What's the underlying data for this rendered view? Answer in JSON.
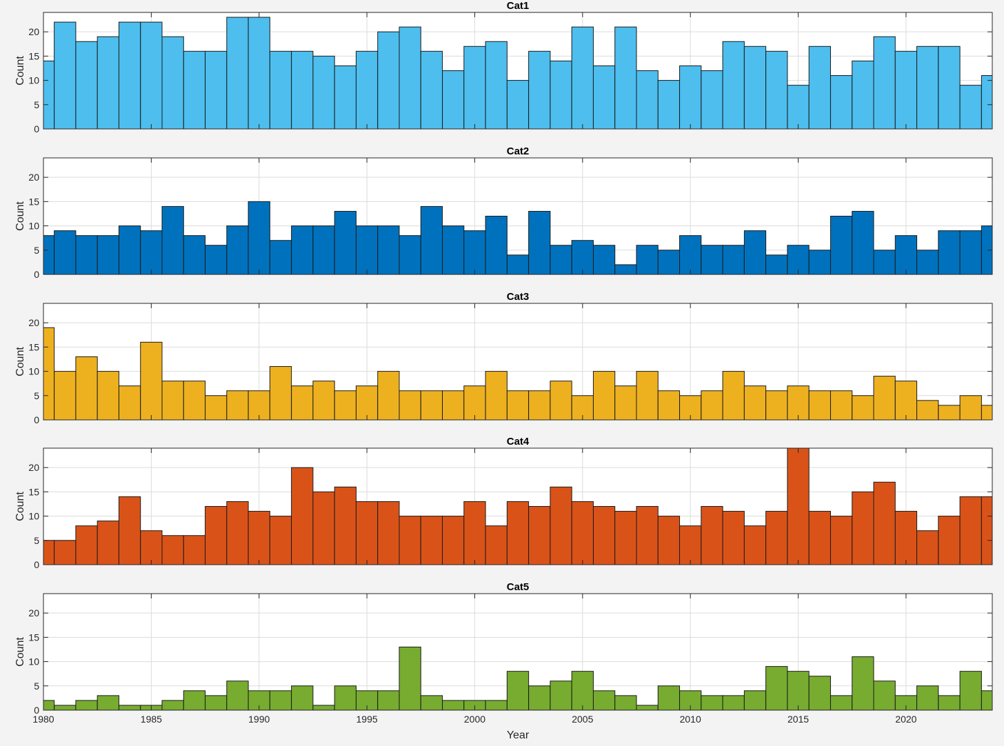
{
  "chart_data": {
    "type": "bar",
    "xlabel": "Year",
    "ylabel": "Count",
    "xlim": [
      1980,
      2024
    ],
    "ylim": [
      0,
      24
    ],
    "x_ticks": [
      1980,
      1985,
      1990,
      1995,
      2000,
      2005,
      2010,
      2015,
      2020
    ],
    "y_ticks": [
      0,
      5,
      10,
      15,
      20
    ],
    "grid": true,
    "years": [
      1980,
      1981,
      1982,
      1983,
      1984,
      1985,
      1986,
      1987,
      1988,
      1989,
      1990,
      1991,
      1992,
      1993,
      1994,
      1995,
      1996,
      1997,
      1998,
      1999,
      2000,
      2001,
      2002,
      2003,
      2004,
      2005,
      2006,
      2007,
      2008,
      2009,
      2010,
      2011,
      2012,
      2013,
      2014,
      2015,
      2016,
      2017,
      2018,
      2019,
      2020,
      2021,
      2022,
      2023,
      2024
    ],
    "series": [
      {
        "name": "Cat1",
        "color": "#4DBEEE",
        "values": [
          14,
          22,
          18,
          19,
          22,
          22,
          19,
          16,
          16,
          23,
          23,
          16,
          16,
          15,
          13,
          16,
          20,
          21,
          16,
          12,
          17,
          18,
          10,
          16,
          14,
          21,
          13,
          21,
          12,
          10,
          13,
          12,
          18,
          17,
          16,
          9,
          17,
          11,
          14,
          19,
          16,
          17,
          17,
          9,
          11
        ]
      },
      {
        "name": "Cat2",
        "color": "#0072BD",
        "values": [
          8,
          9,
          8,
          8,
          10,
          9,
          14,
          8,
          6,
          10,
          15,
          7,
          10,
          10,
          13,
          10,
          10,
          8,
          14,
          10,
          9,
          12,
          4,
          13,
          6,
          7,
          6,
          2,
          6,
          5,
          8,
          6,
          6,
          9,
          4,
          6,
          5,
          12,
          13,
          5,
          8,
          5,
          9,
          9,
          10
        ]
      },
      {
        "name": "Cat3",
        "color": "#EDB120",
        "values": [
          19,
          10,
          13,
          10,
          7,
          16,
          8,
          8,
          5,
          6,
          6,
          11,
          7,
          8,
          6,
          7,
          10,
          6,
          6,
          6,
          7,
          10,
          6,
          6,
          8,
          5,
          10,
          7,
          10,
          6,
          5,
          6,
          10,
          7,
          6,
          7,
          6,
          6,
          5,
          9,
          8,
          4,
          3,
          5,
          3
        ]
      },
      {
        "name": "Cat4",
        "color": "#D95319",
        "values": [
          5,
          5,
          8,
          9,
          14,
          7,
          6,
          6,
          12,
          13,
          11,
          10,
          20,
          15,
          16,
          13,
          13,
          10,
          10,
          10,
          13,
          8,
          13,
          12,
          16,
          13,
          12,
          11,
          12,
          10,
          8,
          12,
          11,
          8,
          11,
          24,
          11,
          10,
          15,
          17,
          11,
          7,
          10,
          14,
          14
        ]
      },
      {
        "name": "Cat5",
        "color": "#77AC30",
        "values": [
          2,
          1,
          2,
          3,
          1,
          1,
          2,
          4,
          3,
          6,
          4,
          4,
          5,
          1,
          5,
          4,
          4,
          13,
          3,
          2,
          2,
          2,
          8,
          5,
          6,
          8,
          4,
          3,
          1,
          5,
          4,
          3,
          3,
          4,
          9,
          8,
          7,
          3,
          11,
          6,
          3,
          5,
          3,
          8,
          4
        ]
      }
    ]
  }
}
